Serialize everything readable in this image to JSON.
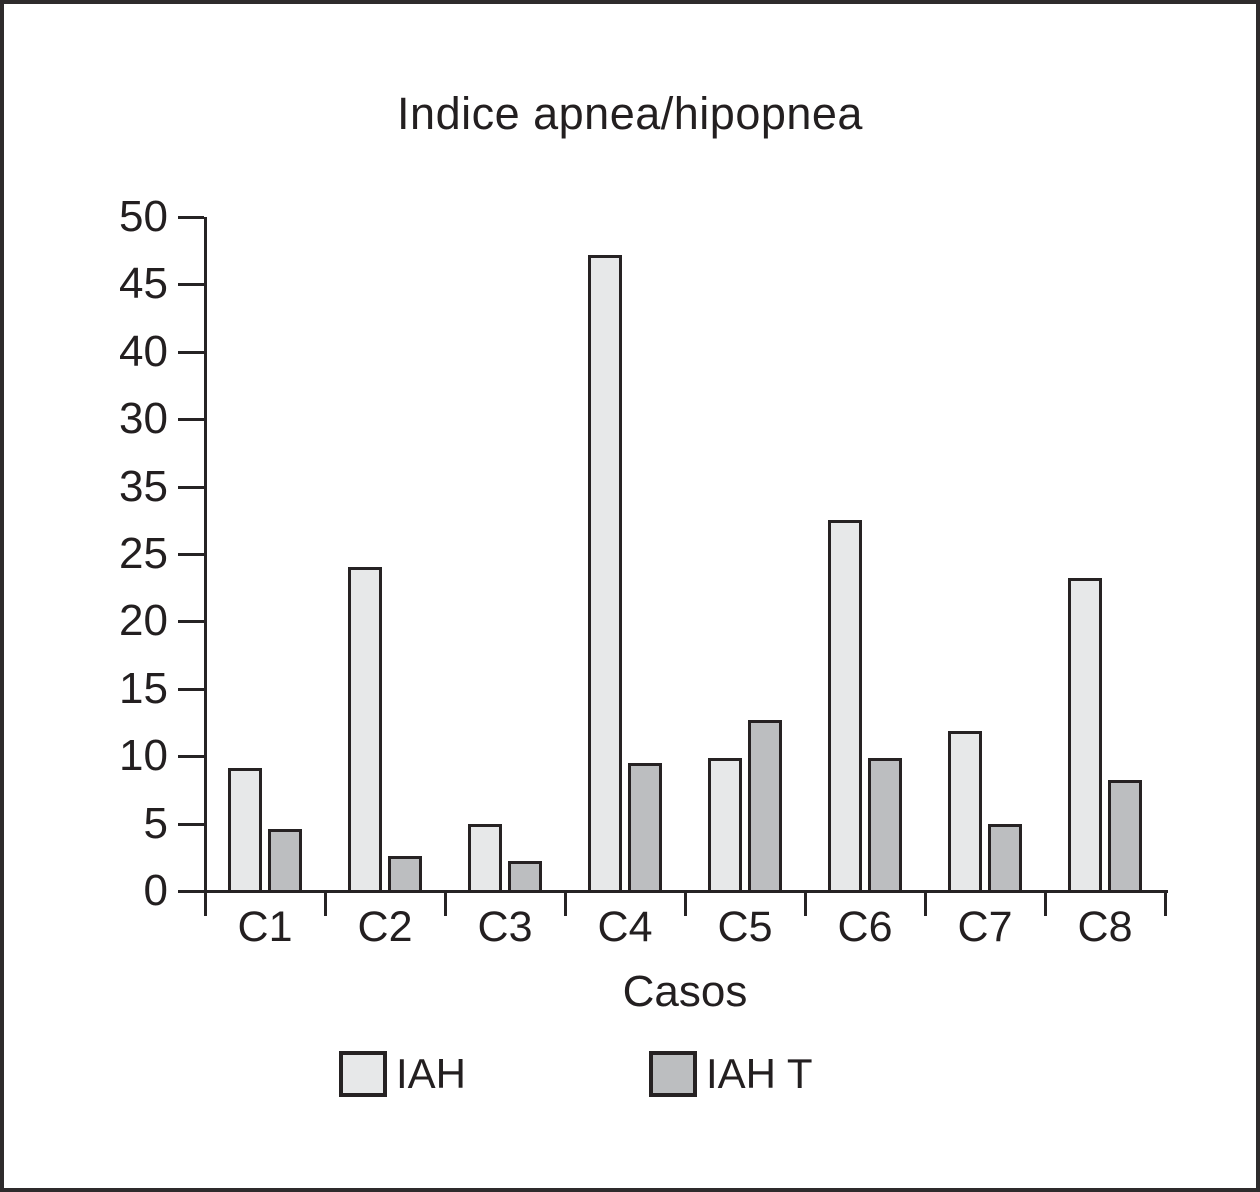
{
  "chart_data": {
    "type": "bar",
    "title": "Indice apnea/hipopnea",
    "xlabel": "Casos",
    "categories": [
      "C1",
      "C2",
      "C3",
      "C4",
      "C5",
      "C6",
      "C7",
      "C8"
    ],
    "series": [
      {
        "name": "IAH",
        "color": "#e7e8e9",
        "values": [
          9.1,
          24.0,
          5.0,
          47.2,
          9.9,
          27.5,
          11.9,
          23.2
        ]
      },
      {
        "name": "IAH T",
        "color": "#bcbec0",
        "values": [
          4.6,
          2.6,
          2.2,
          9.5,
          12.7,
          9.9,
          5.0,
          8.2
        ]
      }
    ],
    "ylim": [
      0,
      50
    ],
    "y_tick_labels_top_to_bottom": [
      "50",
      "45",
      "40",
      "30",
      "35",
      "25",
      "20",
      "15",
      "10",
      "5",
      "0"
    ],
    "grid": false,
    "legend_position": "bottom",
    "axis_color": "#262324",
    "bar_border_color": "#262223",
    "text_color": "#231f20"
  }
}
